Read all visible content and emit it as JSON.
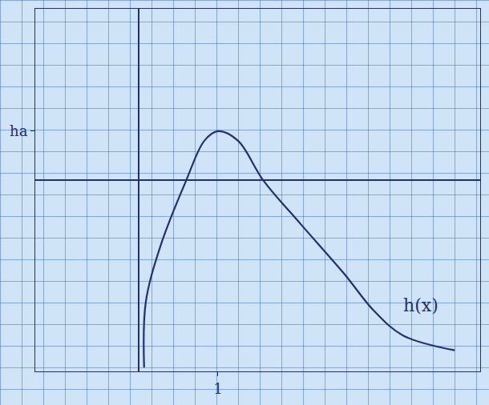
{
  "chart_data": {
    "type": "line",
    "x": [
      0.07,
      0.09,
      0.28,
      0.6,
      0.83,
      1,
      1.25,
      1.57,
      2.04,
      2.59,
      2.96,
      3.33,
      3.98
    ],
    "values": [
      -2.4,
      -1.57,
      -0.83,
      0,
      0.51,
      0.63,
      0.51,
      0,
      -0.56,
      -1.2,
      -1.67,
      -1.99,
      -2.18
    ],
    "color": "#24306e",
    "xlim": [
      -1.3,
      4.3
    ],
    "ylim": [
      -2.45,
      2.2
    ],
    "xticks": [
      1
    ],
    "yticks": [
      {
        "value": 0.63,
        "label": "ha"
      }
    ],
    "grid": false,
    "annotations": [
      {
        "text": "h(x)",
        "x": 3.55,
        "y": -1.75
      }
    ]
  }
}
